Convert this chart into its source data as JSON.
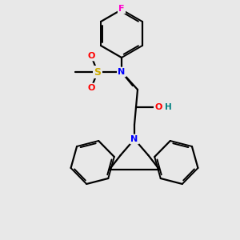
{
  "background_color": "#e8e8e8",
  "atom_colors": {
    "C": "#000000",
    "N": "#0000ff",
    "O": "#ff0000",
    "S": "#ccaa00",
    "F": "#ff00cc",
    "H": "#008080"
  },
  "bond_color": "#000000",
  "figsize": [
    3.0,
    3.0
  ],
  "dpi": 100
}
